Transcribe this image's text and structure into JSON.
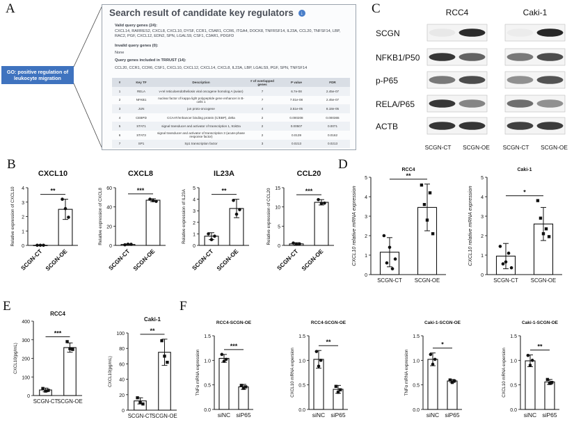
{
  "panel_letters": {
    "a": "A",
    "b": "B",
    "c": "C",
    "d": "D",
    "e": "E",
    "f": "F"
  },
  "trrust": {
    "title": "Search result of candidate key regulators",
    "icon": "download-icon",
    "valid_title": "Valid query genes (24):",
    "valid_genes": "CXCL14, RARRES2, CXCL8, CXCL10, DYSF, CCR1, C5AR1, CCR6, ITGA4, DOCK8, TNFRSF14, IL23A, CCL20, TNFSF14, LBP, RAC2, PGF, CXCL12, EDN2, SPN, LGALS9, CSF1, C3AR1, PDGFD",
    "invalid_title": "Invalid query genes (0):",
    "invalid_value": "None",
    "included_title": "Query genes included in TRRUST (14):",
    "included_genes": "CCL20, CCR1, CCR6, CSF1, CXCL10, CXCL12, CXCL14, CXCL8, IL23A, LBP, LGALS9, PGF, SPN, TNFSF14",
    "columns": [
      "#",
      "Key TF",
      "Description",
      "# of overlapped genes",
      "P value",
      "FDR"
    ],
    "rows": [
      [
        "1",
        "RELA",
        "v-rel reticuloendotheliosis viral oncogene homolog A (avian)",
        "7",
        "6.7e-08",
        "2.45e-07"
      ],
      [
        "2",
        "NFKB1",
        "nuclear factor of kappa light polypeptide gene enhancer in B-cells 1",
        "7",
        "7.01e-08",
        "2.45e-07"
      ],
      [
        "3",
        "JUN",
        "jun proto-oncogene",
        "4",
        "3.51e-05",
        "8.18e-05"
      ],
      [
        "4",
        "CEBPD",
        "CCAAT/enhancer binding protein (C/EBP), delta",
        "2",
        "0.000208",
        "0.000365"
      ],
      [
        "5",
        "STAT1",
        "signal transducer and activator of transcription 1, 91kDa",
        "2",
        "0.00507",
        "0.0071"
      ],
      [
        "6",
        "STAT3",
        "signal transducer and activator of transcription 3 (acute-phase response factor)",
        "2",
        "0.0139",
        "0.0162"
      ],
      [
        "7",
        "SP1",
        "Sp1 transcription factor",
        "3",
        "0.0213",
        "0.0213"
      ]
    ]
  },
  "go_label": "GO: positive regulation of leukocyte migration",
  "western": {
    "cell_lines": [
      "RCC4",
      "Caki-1"
    ],
    "proteins": [
      "SCGN",
      "NFKB1/P50",
      "p-P65",
      "RELA/P65",
      "ACTB"
    ],
    "lanes": [
      "SCGN-CT",
      "SCGN-OE"
    ],
    "intensity": [
      [
        [
          0.06,
          0.9
        ],
        [
          0.04,
          0.92
        ]
      ],
      [
        [
          0.85,
          0.65
        ],
        [
          0.55,
          0.75
        ]
      ],
      [
        [
          0.55,
          0.75
        ],
        [
          0.45,
          0.72
        ]
      ],
      [
        [
          0.85,
          0.5
        ],
        [
          0.6,
          0.45
        ]
      ],
      [
        [
          0.85,
          0.85
        ],
        [
          0.8,
          0.82
        ]
      ]
    ]
  },
  "chart_data": [
    {
      "id": "B1",
      "type": "bar",
      "title": "CXCL10",
      "ylabel": "Relative expression of CXCL10",
      "categories": [
        "SCGN-CT",
        "SCGN-OE"
      ],
      "values": [
        0.01,
        2.5
      ],
      "errors": [
        0.01,
        0.7
      ],
      "points": [
        [
          0.01,
          0.01,
          0.01
        ],
        [
          3.2,
          2.55,
          1.95
        ]
      ],
      "ylim": [
        0,
        4
      ],
      "yticks": [
        0,
        1,
        2,
        3,
        4
      ],
      "sig": "**",
      "tick_rot": true
    },
    {
      "id": "B2",
      "type": "bar",
      "title": "CXCL8",
      "ylabel": "Relative expression of CXCL8",
      "categories": [
        "SCGN-CT",
        "SCGN-OE"
      ],
      "values": [
        1,
        47
      ],
      "errors": [
        0.5,
        1.5
      ],
      "points": [
        [
          0.6,
          1.2,
          1.1
        ],
        [
          48,
          46.5,
          45.8
        ]
      ],
      "ylim": [
        0,
        60
      ],
      "yticks": [
        0,
        20,
        40,
        60
      ],
      "sig": "***",
      "tick_rot": true
    },
    {
      "id": "B3",
      "type": "bar",
      "title": "IL23A",
      "ylabel": "Relative expression of IL23A",
      "categories": [
        "SCGN-CT",
        "SCGN-OE"
      ],
      "values": [
        0.8,
        3.2
      ],
      "errors": [
        0.3,
        0.8
      ],
      "points": [
        [
          1.0,
          0.5,
          0.8
        ],
        [
          3.9,
          2.7,
          3.1
        ]
      ],
      "ylim": [
        0,
        5
      ],
      "yticks": [
        0,
        1,
        2,
        3,
        4,
        5
      ],
      "sig": "**",
      "tick_rot": true
    },
    {
      "id": "B4",
      "type": "bar",
      "title": "CCL20",
      "ylabel": "Relative expression of CCL20",
      "categories": [
        "SCGN-CT",
        "SCGN-OE"
      ],
      "values": [
        0.4,
        11.2
      ],
      "errors": [
        0.3,
        0.7
      ],
      "points": [
        [
          0.6,
          0.3,
          0.4
        ],
        [
          11.9,
          10.9,
          11.0
        ]
      ],
      "ylim": [
        0,
        15
      ],
      "yticks": [
        0,
        5,
        10,
        15
      ],
      "sig": "***",
      "tick_rot": true
    },
    {
      "id": "D1",
      "type": "bar",
      "title": "RCC4",
      "ylabel": "CXCL10 relative mRNA expression",
      "categories": [
        "SCGN-CT",
        "SCGN-OE"
      ],
      "values": [
        1.15,
        3.45
      ],
      "errors": [
        0.75,
        1.2
      ],
      "points": [
        [
          2.0,
          0.6,
          1.4,
          0.3,
          0.8
        ],
        [
          4.6,
          3.6,
          2.8,
          4.2,
          2.1
        ]
      ],
      "ylim": [
        0,
        5
      ],
      "yticks": [
        0,
        1,
        2,
        3,
        4,
        5
      ],
      "sig": "**",
      "tick_rot": false
    },
    {
      "id": "D2",
      "type": "bar",
      "title": "Caki-1",
      "ylabel": "CXCL10 relative mRNA expression",
      "categories": [
        "SCGN-CT",
        "SCGN-OE"
      ],
      "values": [
        0.95,
        2.6
      ],
      "errors": [
        0.65,
        0.85
      ],
      "points": [
        [
          1.45,
          0.55,
          0.65,
          1.1,
          0.35
        ],
        [
          3.8,
          2.9,
          2.1,
          2.35,
          1.95
        ]
      ],
      "ylim": [
        0,
        5
      ],
      "yticks": [
        0,
        1,
        2,
        3,
        4,
        5
      ],
      "sig": "*",
      "tick_rot": false
    },
    {
      "id": "E1",
      "type": "bar",
      "title": "RCC4",
      "ylabel": "CXCL10(pg/mL)",
      "categories": [
        "SCGN-CT",
        "SCGN-OE"
      ],
      "values": [
        30,
        258
      ],
      "errors": [
        10,
        25
      ],
      "points": [
        [
          38,
          24,
          28
        ],
        [
          290,
          252,
          248
        ]
      ],
      "ylim": [
        0,
        400
      ],
      "yticks": [
        0,
        100,
        200,
        300,
        400
      ],
      "sig": "***",
      "tick_rot": false
    },
    {
      "id": "E2",
      "type": "bar",
      "title": "Caki-1",
      "ylabel": "CXCL10(pg/mL)",
      "categories": [
        "SCGN-CT",
        "SCGN-OE"
      ],
      "values": [
        12,
        75
      ],
      "errors": [
        4,
        17
      ],
      "points": [
        [
          16,
          10,
          8
        ],
        [
          90,
          70,
          62
        ]
      ],
      "ylim": [
        0,
        100
      ],
      "yticks": [
        0,
        20,
        40,
        60,
        80,
        100
      ],
      "sig": "**",
      "tick_rot": false
    },
    {
      "id": "F1",
      "type": "bar",
      "title": "RCC4-SCGN-OE",
      "ylabel": "TNFα mRNA expression",
      "categories": [
        "siNC",
        "siP65"
      ],
      "values": [
        1.04,
        0.46
      ],
      "errors": [
        0.08,
        0.05
      ],
      "points": [
        [
          1.12,
          0.98,
          1.02
        ],
        [
          0.49,
          0.43,
          0.46
        ]
      ],
      "ylim": [
        0,
        1.5
      ],
      "yticks": [
        0.0,
        0.5,
        1.0,
        1.5
      ],
      "sig": "***",
      "tick_rot": false
    },
    {
      "id": "F2",
      "type": "bar",
      "title": "RCC4-SCGN-OE",
      "ylabel": "CXCL10  mRNA expersion",
      "categories": [
        "siNC",
        "siP65"
      ],
      "values": [
        1.02,
        0.41
      ],
      "errors": [
        0.18,
        0.08
      ],
      "points": [
        [
          1.18,
          0.88,
          1.0
        ],
        [
          0.47,
          0.35,
          0.4
        ]
      ],
      "ylim": [
        0,
        1.5
      ],
      "yticks": [
        0.0,
        0.5,
        1.0,
        1.5
      ],
      "sig": "**",
      "tick_rot": false
    },
    {
      "id": "F3",
      "type": "bar",
      "title": "Caki-1-SCGN-OE",
      "ylabel": "TNFα mRNA expression",
      "categories": [
        "siNC",
        "siP65"
      ],
      "values": [
        1.02,
        0.58
      ],
      "errors": [
        0.13,
        0.03
      ],
      "points": [
        [
          1.12,
          0.92,
          1.02
        ],
        [
          0.6,
          0.55,
          0.58
        ]
      ],
      "ylim": [
        0,
        1.5
      ],
      "yticks": [
        0.0,
        0.5,
        1.0,
        1.5
      ],
      "sig": "*",
      "tick_rot": false
    },
    {
      "id": "F4",
      "type": "bar",
      "title": "Caki-1-SCGN-OE",
      "ylabel": "CXCL10  mRNA expersion",
      "categories": [
        "siNC",
        "siP65"
      ],
      "values": [
        0.99,
        0.56
      ],
      "errors": [
        0.12,
        0.05
      ],
      "points": [
        [
          1.1,
          0.9,
          1.0
        ],
        [
          0.61,
          0.53,
          0.55
        ]
      ],
      "ylim": [
        0,
        1.5
      ],
      "yticks": [
        0.0,
        0.5,
        1.0,
        1.5
      ],
      "sig": "**",
      "tick_rot": false
    }
  ]
}
